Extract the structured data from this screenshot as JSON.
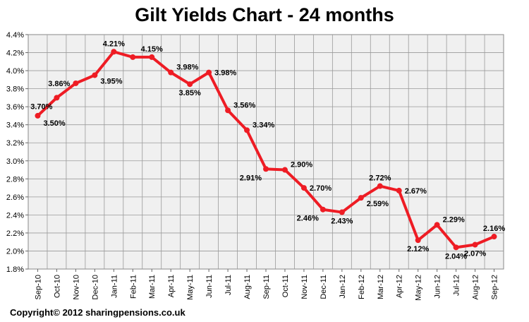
{
  "chart_data": {
    "type": "line",
    "title": "Gilt Yields Chart - 24 months",
    "xlabel": "",
    "ylabel": "",
    "ylim": [
      1.8,
      4.4
    ],
    "ytick_step": 0.2,
    "ytick_labels": [
      "1.8%",
      "2.0%",
      "2.2%",
      "2.4%",
      "2.6%",
      "2.8%",
      "3.0%",
      "3.2%",
      "3.4%",
      "3.6%",
      "3.8%",
      "4.0%",
      "4.2%",
      "4.4%"
    ],
    "grid": true,
    "legend": "none",
    "categories": [
      "Sep-10",
      "Oct-10",
      "Nov-10",
      "Dec-10",
      "Jan-11",
      "Feb-11",
      "Mar-11",
      "Apr-11",
      "May-11",
      "Jun-11",
      "Jul-11",
      "Aug-11",
      "Sep-11",
      "Oct-11",
      "Nov-11",
      "Dec-11",
      "Jan-12",
      "Feb-12",
      "Mar-12",
      "Apr-12",
      "May-12",
      "Jun-12",
      "Jul-12",
      "Aug-12",
      "Sep-12"
    ],
    "series": [
      {
        "values": [
          3.5,
          3.7,
          3.86,
          3.95,
          4.21,
          4.15,
          4.15,
          3.98,
          3.85,
          3.98,
          3.56,
          3.34,
          2.91,
          2.9,
          2.7,
          2.46,
          2.43,
          2.59,
          2.72,
          2.67,
          2.12,
          2.29,
          2.04,
          2.07,
          2.16
        ],
        "color": "#ee1c24"
      }
    ],
    "data_labels": [
      {
        "text": "3.50%",
        "index": 0,
        "anchor": "below-right"
      },
      {
        "text": "3.70%",
        "index": 1,
        "anchor": "below-left"
      },
      {
        "text": "3.86%",
        "index": 2,
        "anchor": "left"
      },
      {
        "text": "3.95%",
        "index": 3,
        "anchor": "right-low"
      },
      {
        "text": "4.21%",
        "index": 4,
        "anchor": "above"
      },
      {
        "text": "4.15%",
        "index": 6,
        "anchor": "above"
      },
      {
        "text": "3.98%",
        "index": 7,
        "anchor": "above-right"
      },
      {
        "text": "3.85%",
        "index": 8,
        "anchor": "below"
      },
      {
        "text": "3.98%",
        "index": 9,
        "anchor": "right"
      },
      {
        "text": "3.56%",
        "index": 10,
        "anchor": "above-right"
      },
      {
        "text": "3.34%",
        "index": 11,
        "anchor": "above-right"
      },
      {
        "text": "2.91%",
        "index": 12,
        "anchor": "below-left"
      },
      {
        "text": "2.90%",
        "index": 13,
        "anchor": "above-right"
      },
      {
        "text": "2.70%",
        "index": 14,
        "anchor": "right"
      },
      {
        "text": "2.46%",
        "index": 15,
        "anchor": "below-left"
      },
      {
        "text": "2.43%",
        "index": 16,
        "anchor": "below"
      },
      {
        "text": "2.59%",
        "index": 17,
        "anchor": "right-low"
      },
      {
        "text": "2.72%",
        "index": 18,
        "anchor": "above"
      },
      {
        "text": "2.67%",
        "index": 19,
        "anchor": "right"
      },
      {
        "text": "2.12%",
        "index": 20,
        "anchor": "below"
      },
      {
        "text": "2.29%",
        "index": 21,
        "anchor": "above-right"
      },
      {
        "text": "2.04%",
        "index": 22,
        "anchor": "below"
      },
      {
        "text": "2.07%",
        "index": 23,
        "anchor": "below"
      },
      {
        "text": "2.16%",
        "index": 24,
        "anchor": "above"
      }
    ]
  },
  "copyright": "Copyright© 2012 sharingpensions.co.uk"
}
